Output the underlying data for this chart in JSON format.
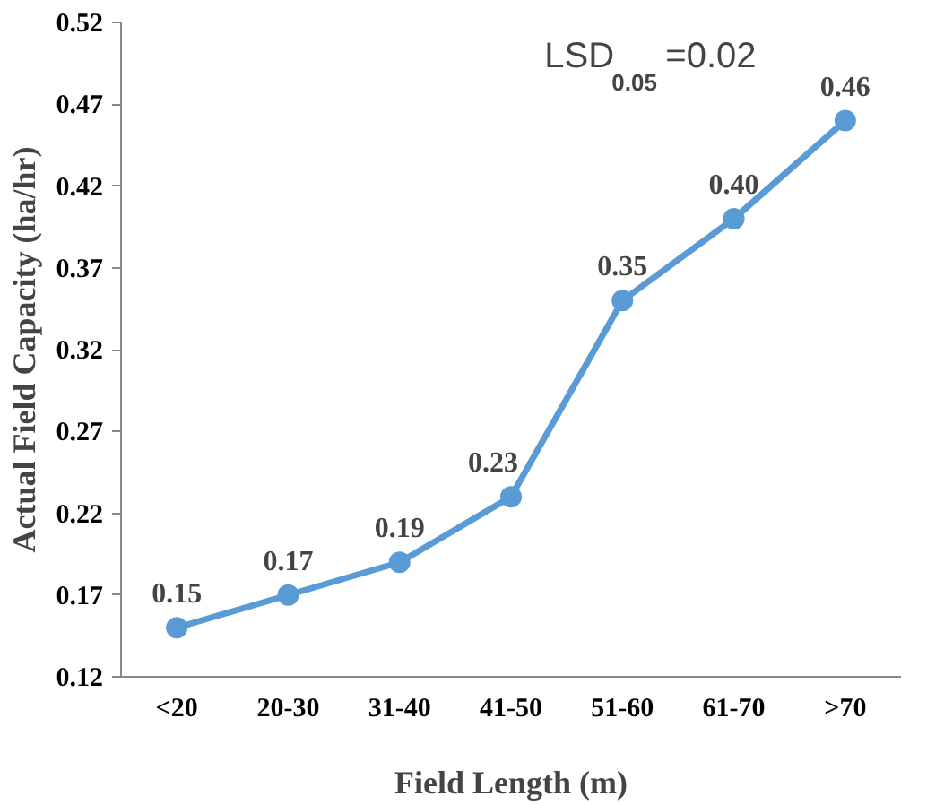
{
  "chart_data": {
    "type": "line",
    "xlabel": "Field Length (m)",
    "ylabel": "Actual Field Capacity (ha/hr)",
    "categories": [
      "<20",
      "20-30",
      "31-40",
      "41-50",
      "51-60",
      "61-70",
      ">70"
    ],
    "series": [
      {
        "color": "#5b9bd5",
        "values": [
          0.15,
          0.17,
          0.19,
          0.23,
          0.35,
          0.4,
          0.46
        ],
        "value_labels": [
          "0.15",
          "0.17",
          "0.19",
          "0.23",
          "0.35",
          "0.40",
          "0.46"
        ]
      }
    ],
    "ylim": [
      0.12,
      0.52
    ],
    "yticks": [
      "0.12",
      "0.17",
      "0.22",
      "0.27",
      "0.32",
      "0.37",
      "0.42",
      "0.47",
      "0.52"
    ],
    "annotations": [
      "LSD$_{0.05}$=0.02"
    ],
    "marker": "circle",
    "line_style": "solid",
    "grid": false
  }
}
